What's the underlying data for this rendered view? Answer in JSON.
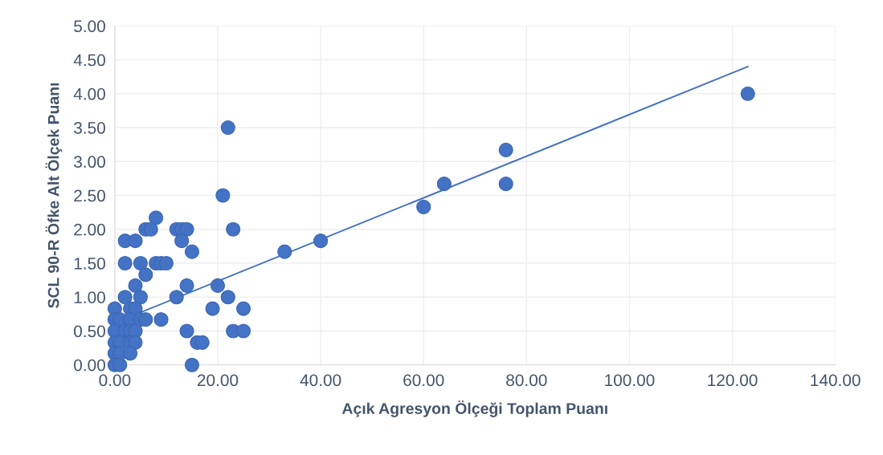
{
  "chart_data": {
    "type": "scatter",
    "xlabel": "Açık Agresyon Ölçeği Toplam Puanı",
    "ylabel": "SCL 90-R Öfke Alt Ölçek Puanı",
    "xlim": [
      0,
      140
    ],
    "xticks": [
      {
        "value": 0,
        "label": "0.00"
      },
      {
        "value": 20,
        "label": "20.00"
      },
      {
        "value": 40,
        "label": "40.00"
      },
      {
        "value": 60,
        "label": "60.00"
      },
      {
        "value": 80,
        "label": "80.00"
      },
      {
        "value": 100,
        "label": "100.00"
      },
      {
        "value": 120,
        "label": "120.00"
      },
      {
        "value": 140,
        "label": "140.00"
      }
    ],
    "ylim": [
      0,
      5
    ],
    "yticks": [
      {
        "value": 0,
        "label": "0.00"
      },
      {
        "value": 0.5,
        "label": "0.50"
      },
      {
        "value": 1,
        "label": "1.00"
      },
      {
        "value": 1.5,
        "label": "1.50"
      },
      {
        "value": 2,
        "label": "2.00"
      },
      {
        "value": 2.5,
        "label": "2.50"
      },
      {
        "value": 3,
        "label": "3.00"
      },
      {
        "value": 3.5,
        "label": "3.50"
      },
      {
        "value": 4,
        "label": "4.00"
      },
      {
        "value": 4.5,
        "label": "4.50"
      },
      {
        "value": 5,
        "label": "5.00"
      }
    ],
    "grid": true,
    "marker": "circle",
    "series": [
      {
        "color": "#4472c4",
        "x": [
          123,
          76,
          76,
          64,
          60,
          40,
          33,
          22,
          21,
          23,
          20,
          19,
          22,
          23,
          25,
          25,
          14,
          14,
          15,
          16,
          17,
          15,
          12,
          13,
          14,
          13,
          8,
          6,
          7,
          2,
          4,
          2,
          5,
          8,
          9,
          10,
          6,
          4,
          12,
          2,
          5,
          9,
          0,
          3,
          4,
          0,
          1,
          3,
          5,
          6,
          0,
          2,
          3,
          4,
          0,
          1,
          3,
          4,
          0,
          1,
          3,
          0,
          1
        ],
        "values": [
          4.0,
          3.17,
          2.67,
          2.67,
          2.33,
          1.83,
          1.67,
          3.5,
          2.5,
          2.0,
          1.17,
          0.83,
          1.0,
          0.5,
          0.5,
          0.83,
          1.17,
          0.5,
          0,
          0.33,
          0.33,
          1.67,
          2.0,
          2.0,
          2.0,
          1.83,
          2.17,
          2.0,
          2.0,
          1.83,
          1.83,
          1.5,
          1.5,
          1.5,
          1.5,
          1.5,
          1.33,
          1.17,
          1.0,
          1.0,
          1.0,
          0.67,
          0.83,
          0.83,
          0.83,
          0.67,
          0.67,
          0.67,
          0.67,
          0.67,
          0.5,
          0.5,
          0.5,
          0.5,
          0.33,
          0.33,
          0.33,
          0.33,
          0.17,
          0.17,
          0.17,
          0,
          0
        ]
      },
      {
        "type": "line",
        "color": "#4472c4",
        "line_style": "solid",
        "marker": "none",
        "x": [
          0,
          123
        ],
        "values": [
          0.62,
          4.4
        ]
      }
    ]
  }
}
